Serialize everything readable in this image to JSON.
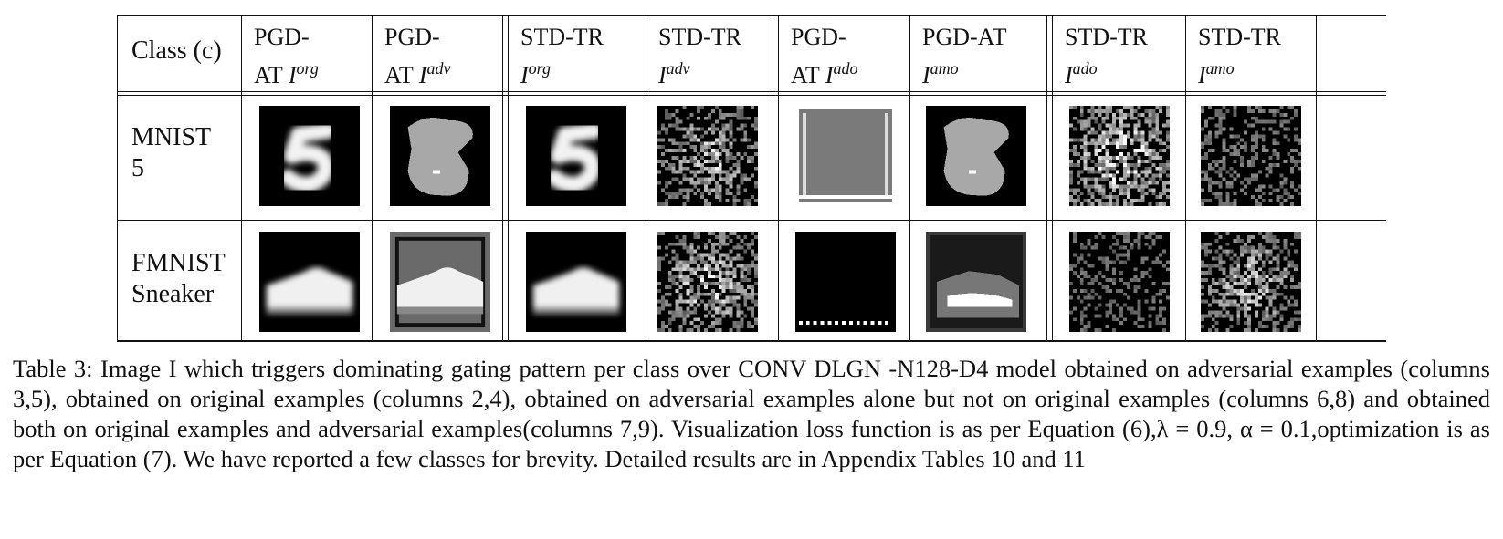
{
  "table": {
    "class_header": "Class (c)",
    "columns": [
      {
        "line1": "PGD-",
        "line2": "AT",
        "sym": "I",
        "sup": "org"
      },
      {
        "line1": "PGD-",
        "line2": "AT",
        "sym": "I",
        "sup": "adv"
      },
      {
        "line1": "STD-TR",
        "line2": "",
        "sym": "I",
        "sup": "org"
      },
      {
        "line1": "STD-TR",
        "line2": "",
        "sym": "I",
        "sup": "adv"
      },
      {
        "line1": "PGD-",
        "line2": "AT",
        "sym": "I",
        "sup": "ado"
      },
      {
        "line1": "PGD-AT",
        "line2": "",
        "sym": "I",
        "sup": "amo"
      },
      {
        "line1": "STD-TR",
        "line2": "",
        "sym": "I",
        "sup": "ado"
      },
      {
        "line1": "STD-TR",
        "line2": "",
        "sym": "I",
        "sup": "amo"
      }
    ],
    "rows": [
      {
        "line1": "MNIST",
        "line2": "5"
      },
      {
        "line1": "FMNIST",
        "line2": "Sneaker"
      }
    ]
  },
  "caption": {
    "label": "Table 3:",
    "text": "Image I which triggers dominating gating pattern per class over CONV DLGN -N128-D4 model obtained on adversarial examples (columns 3,5), obtained on original examples (columns 2,4), obtained on adversarial examples alone but not on original examples (columns 6,8) and obtained both on original examples and adversarial examples(columns 7,9). Visualization loss function is as per Equation (6),λ = 0.9, α = 0.1,optimization is as per Equation (7). We have reported a few classes for brevity. Detailed results are in Appendix Tables 10 and 11"
  }
}
